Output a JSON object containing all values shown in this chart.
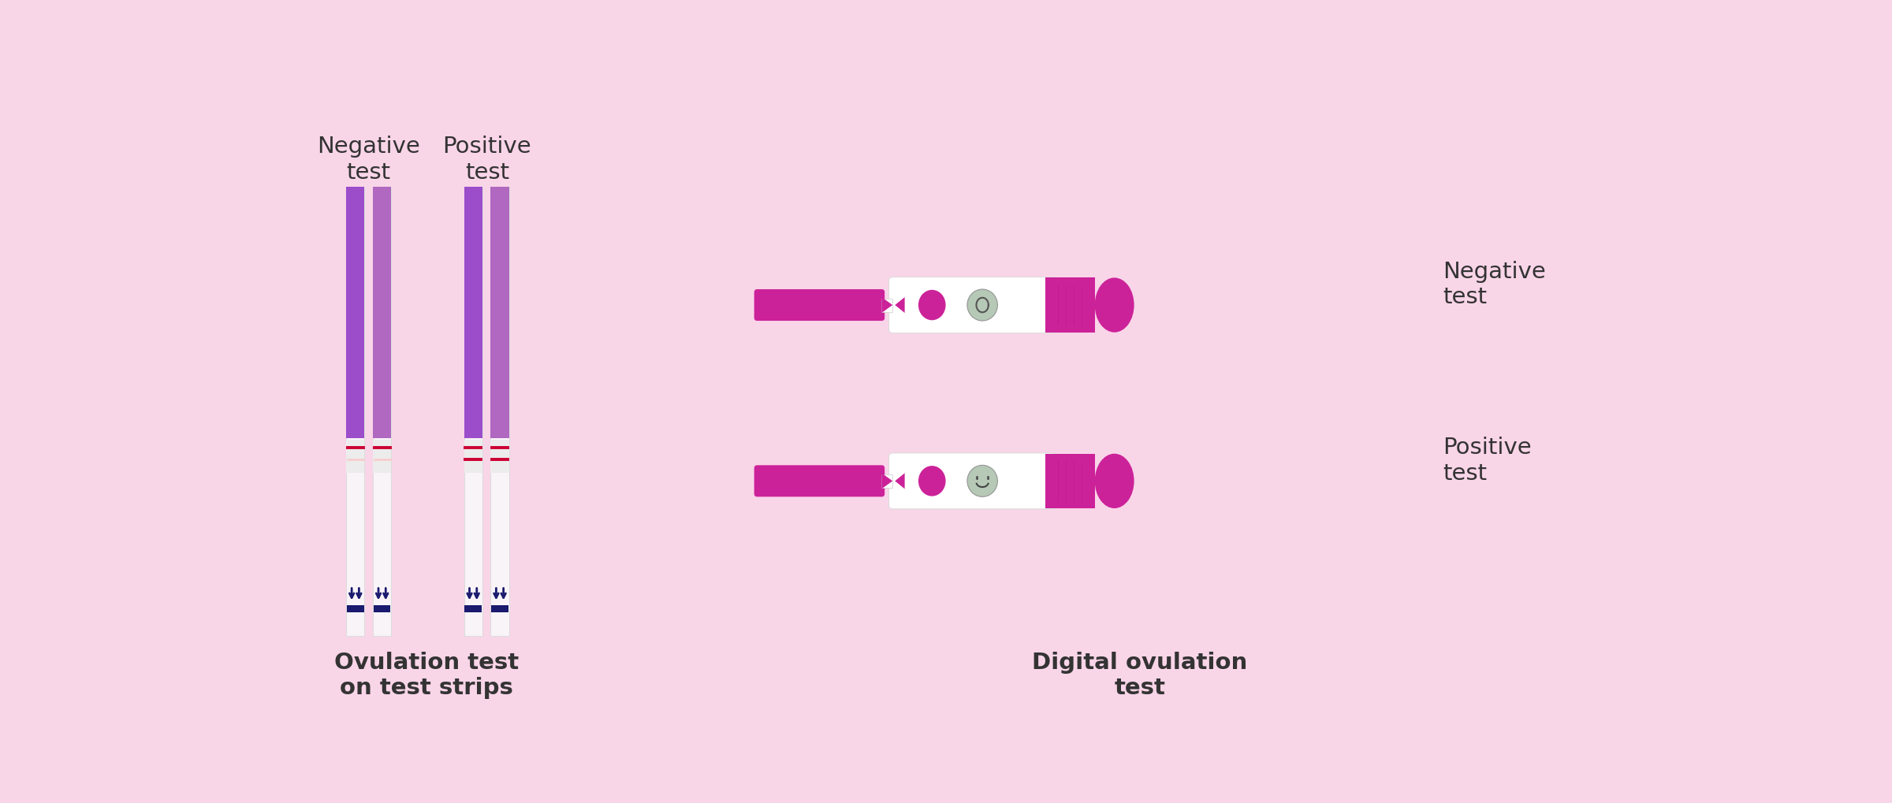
{
  "background_color": "#f9d5e8",
  "purple_dark": "#9b4dca",
  "purple_light": "#b068c0",
  "pink_magenta": "#cc2299",
  "white": "#ffffff",
  "off_white": "#f8f4f8",
  "red_line": "#cc0033",
  "pink_line": "#ffaaaa",
  "navy": "#1a1a6e",
  "gray_display": "#aabfaa",
  "label_color": "#333333",
  "neg_label": "Negative\ntest",
  "pos_label": "Positive\ntest",
  "strip_label": "Ovulation test\non test strips",
  "digital_label": "Digital ovulation\ntest",
  "figw": 24.0,
  "figh": 10.2,
  "xlim": [
    0,
    24
  ],
  "ylim": [
    0,
    10.2
  ]
}
